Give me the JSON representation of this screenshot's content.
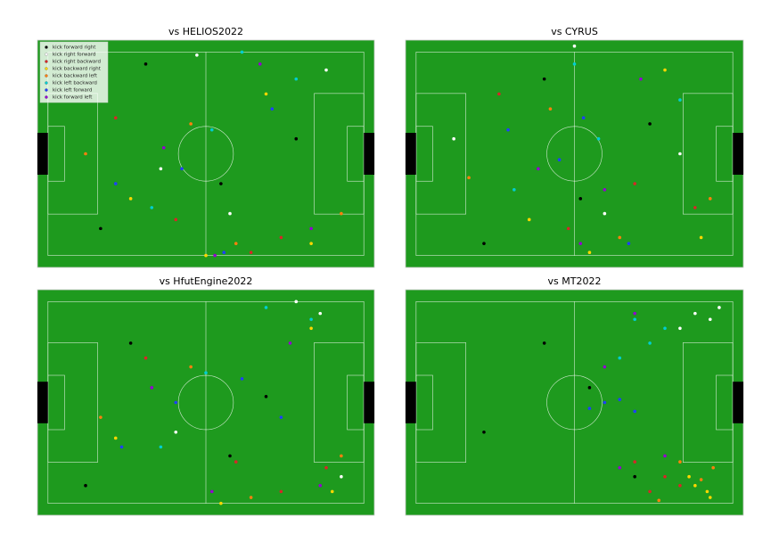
{
  "chart_data": [
    {
      "type": "scatter",
      "title": "vs HELIOS2022",
      "xlim": [
        -56,
        56
      ],
      "ylim": [
        -38,
        38
      ],
      "legend": "upper left",
      "series": [
        {
          "name": "kick forward right",
          "color": "#000000",
          "x": [
            -20,
            5,
            -35,
            30
          ],
          "y": [
            -30,
            10,
            25,
            -5
          ]
        },
        {
          "name": "kick right forward",
          "color": "#ffffff",
          "x": [
            -3,
            8,
            40,
            -15
          ],
          "y": [
            -33,
            20,
            -28,
            5
          ]
        },
        {
          "name": "kick right backward",
          "color": "#d62728",
          "x": [
            -10,
            15,
            25,
            -30
          ],
          "y": [
            22,
            33,
            28,
            -12
          ]
        },
        {
          "name": "kick backward right",
          "color": "#ffd700",
          "x": [
            0,
            20,
            -25,
            35
          ],
          "y": [
            34,
            -20,
            15,
            30
          ]
        },
        {
          "name": "kick backward left",
          "color": "#ff7f0e",
          "x": [
            -5,
            10,
            45,
            -40
          ],
          "y": [
            -10,
            30,
            20,
            0
          ]
        },
        {
          "name": "kick left backward",
          "color": "#00ced1",
          "x": [
            12,
            -18,
            30,
            2
          ],
          "y": [
            -34,
            18,
            -25,
            -8
          ]
        },
        {
          "name": "kick left forward",
          "color": "#1f3fff",
          "x": [
            -8,
            22,
            -30,
            6
          ],
          "y": [
            5,
            -15,
            10,
            33
          ]
        },
        {
          "name": "kick forward left",
          "color": "#9400d3",
          "x": [
            3,
            -14,
            18,
            35
          ],
          "y": [
            34,
            -2,
            -30,
            25
          ]
        }
      ]
    },
    {
      "type": "scatter",
      "title": "vs CYRUS",
      "xlim": [
        -56,
        56
      ],
      "ylim": [
        -38,
        38
      ],
      "series": [
        {
          "color": "#000000",
          "x": [
            -10,
            2,
            -30,
            25
          ],
          "y": [
            -25,
            15,
            30,
            -10
          ]
        },
        {
          "color": "#ffffff",
          "x": [
            0,
            -40,
            35,
            10
          ],
          "y": [
            -36,
            -5,
            0,
            20
          ]
        },
        {
          "color": "#d62728",
          "x": [
            -2,
            20,
            40,
            -25
          ],
          "y": [
            25,
            10,
            18,
            -20
          ]
        },
        {
          "color": "#ffd700",
          "x": [
            5,
            30,
            -15,
            42
          ],
          "y": [
            33,
            -28,
            22,
            28
          ]
        },
        {
          "color": "#ff7f0e",
          "x": [
            -8,
            15,
            45,
            -35
          ],
          "y": [
            -15,
            28,
            15,
            8
          ]
        },
        {
          "color": "#00ced1",
          "x": [
            0,
            -20,
            35,
            8
          ],
          "y": [
            -30,
            12,
            -18,
            -5
          ]
        },
        {
          "color": "#1f3fff",
          "x": [
            -5,
            3,
            -22,
            18
          ],
          "y": [
            2,
            -12,
            -8,
            30
          ]
        },
        {
          "color": "#9400d3",
          "x": [
            2,
            -12,
            22,
            10
          ],
          "y": [
            30,
            5,
            -25,
            12
          ]
        }
      ]
    },
    {
      "type": "scatter",
      "title": "vs HfutEngine2022",
      "xlim": [
        -56,
        56
      ],
      "ylim": [
        -38,
        38
      ],
      "series": [
        {
          "color": "#000000",
          "x": [
            -25,
            8,
            -40,
            20
          ],
          "y": [
            -20,
            18,
            28,
            -2
          ]
        },
        {
          "color": "#ffffff",
          "x": [
            30,
            38,
            45,
            -10
          ],
          "y": [
            -34,
            -30,
            25,
            10
          ]
        },
        {
          "color": "#d62728",
          "x": [
            10,
            25,
            40,
            -20
          ],
          "y": [
            20,
            30,
            22,
            -15
          ]
        },
        {
          "color": "#ffd700",
          "x": [
            5,
            35,
            -30,
            42
          ],
          "y": [
            34,
            -25,
            12,
            30
          ]
        },
        {
          "color": "#ff7f0e",
          "x": [
            -5,
            15,
            45,
            -35
          ],
          "y": [
            -12,
            32,
            18,
            5
          ]
        },
        {
          "color": "#00ced1",
          "x": [
            20,
            -15,
            35,
            0
          ],
          "y": [
            -32,
            15,
            -28,
            -10
          ]
        },
        {
          "color": "#1f3fff",
          "x": [
            -10,
            12,
            -28,
            25
          ],
          "y": [
            0,
            -8,
            15,
            5
          ]
        },
        {
          "color": "#9400d3",
          "x": [
            2,
            -18,
            28,
            38
          ],
          "y": [
            30,
            -5,
            -20,
            28
          ]
        }
      ]
    },
    {
      "type": "scatter",
      "title": "vs MT2022",
      "xlim": [
        -56,
        56
      ],
      "ylim": [
        -38,
        38
      ],
      "series": [
        {
          "color": "#000000",
          "x": [
            -30,
            -10,
            20,
            5
          ],
          "y": [
            10,
            -20,
            25,
            -5
          ]
        },
        {
          "color": "#ffffff",
          "x": [
            40,
            45,
            35,
            48
          ],
          "y": [
            -30,
            -28,
            -25,
            -32
          ]
        },
        {
          "color": "#d62728",
          "x": [
            20,
            30,
            25,
            35
          ],
          "y": [
            20,
            25,
            30,
            28
          ]
        },
        {
          "color": "#ffd700",
          "x": [
            40,
            45,
            38,
            44
          ],
          "y": [
            28,
            32,
            25,
            30
          ]
        },
        {
          "color": "#ff7f0e",
          "x": [
            35,
            42,
            28,
            46
          ],
          "y": [
            20,
            26,
            33,
            22
          ]
        },
        {
          "color": "#00ced1",
          "x": [
            25,
            30,
            15,
            20
          ],
          "y": [
            -20,
            -25,
            -15,
            -28
          ]
        },
        {
          "color": "#1f3fff",
          "x": [
            5,
            10,
            15,
            20
          ],
          "y": [
            2,
            0,
            -1,
            3
          ]
        },
        {
          "color": "#9400d3",
          "x": [
            10,
            15,
            30,
            20
          ],
          "y": [
            -12,
            22,
            18,
            -30
          ]
        }
      ]
    }
  ]
}
